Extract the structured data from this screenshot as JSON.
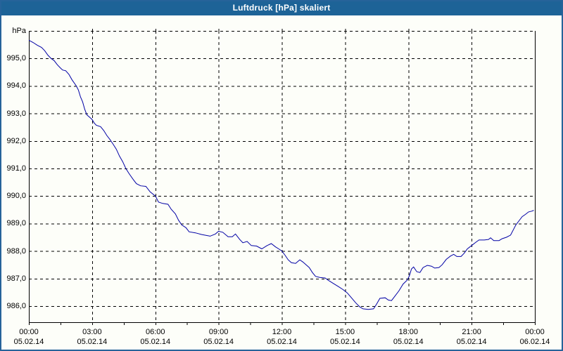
{
  "titlebar": {
    "title": "Luftdruck [hPa] skaliert"
  },
  "colors": {
    "titlebar_bg": "#1D6397",
    "titlebar_fg": "#FFFFFF",
    "window_border": "#26639A",
    "window_bg": "#FDFEF9",
    "grid": "#000000",
    "frame": "#000000",
    "series_line": "#0000A5",
    "label_text": "#000000"
  },
  "chart_data": {
    "type": "line",
    "title": "Luftdruck [hPa] skaliert",
    "ylabel": "hPa",
    "ylim": [
      985.4,
      996.0
    ],
    "xlim_hours": [
      0,
      24
    ],
    "grid": "dashed",
    "minor_tick_step_hours": 1.5,
    "y_ticks": [
      {
        "value": 996.0,
        "label": "hPa"
      },
      {
        "value": 995.0,
        "label": "995,0"
      },
      {
        "value": 994.0,
        "label": "994,0"
      },
      {
        "value": 993.0,
        "label": "993,0"
      },
      {
        "value": 992.0,
        "label": "992,0"
      },
      {
        "value": 991.0,
        "label": "991,0"
      },
      {
        "value": 990.0,
        "label": "990,0"
      },
      {
        "value": 989.0,
        "label": "989,0"
      },
      {
        "value": 988.0,
        "label": "988,0"
      },
      {
        "value": 987.0,
        "label": "987,0"
      },
      {
        "value": 986.0,
        "label": "986,0"
      }
    ],
    "x_ticks": [
      {
        "hour": 0,
        "time": "00:00",
        "date": "05.02.14"
      },
      {
        "hour": 3,
        "time": "03:00",
        "date": "05.02.14"
      },
      {
        "hour": 6,
        "time": "06:00",
        "date": "05.02.14"
      },
      {
        "hour": 9,
        "time": "09:00",
        "date": "05.02.14"
      },
      {
        "hour": 12,
        "time": "12:00",
        "date": "05.02.14"
      },
      {
        "hour": 15,
        "time": "15:00",
        "date": "05.02.14"
      },
      {
        "hour": 18,
        "time": "18:00",
        "date": "05.02.14"
      },
      {
        "hour": 21,
        "time": "21:00",
        "date": "05.02.14"
      },
      {
        "hour": 24,
        "time": "00:00",
        "date": "06.02.14"
      }
    ],
    "series": [
      {
        "name": "Luftdruck",
        "unit": "hPa",
        "points": [
          [
            0.0,
            995.66
          ],
          [
            0.2,
            995.58
          ],
          [
            0.4,
            995.48
          ],
          [
            0.6,
            995.4
          ],
          [
            0.75,
            995.28
          ],
          [
            0.9,
            995.12
          ],
          [
            1.05,
            995.0
          ],
          [
            1.2,
            994.92
          ],
          [
            1.35,
            994.77
          ],
          [
            1.5,
            994.65
          ],
          [
            1.6,
            994.58
          ],
          [
            1.75,
            994.55
          ],
          [
            1.9,
            994.42
          ],
          [
            2.05,
            994.22
          ],
          [
            2.25,
            994.0
          ],
          [
            2.35,
            993.85
          ],
          [
            2.45,
            993.6
          ],
          [
            2.55,
            993.42
          ],
          [
            2.65,
            993.15
          ],
          [
            2.75,
            992.95
          ],
          [
            2.9,
            992.85
          ],
          [
            3.0,
            992.78
          ],
          [
            3.1,
            992.65
          ],
          [
            3.2,
            992.57
          ],
          [
            3.4,
            992.52
          ],
          [
            3.55,
            992.38
          ],
          [
            3.7,
            992.2
          ],
          [
            3.85,
            992.05
          ],
          [
            4.0,
            991.88
          ],
          [
            4.15,
            991.7
          ],
          [
            4.3,
            991.45
          ],
          [
            4.45,
            991.25
          ],
          [
            4.6,
            991.0
          ],
          [
            4.75,
            990.82
          ],
          [
            4.95,
            990.6
          ],
          [
            5.1,
            990.45
          ],
          [
            5.3,
            990.37
          ],
          [
            5.55,
            990.35
          ],
          [
            5.75,
            990.15
          ],
          [
            6.0,
            990.0
          ],
          [
            6.15,
            989.78
          ],
          [
            6.35,
            989.73
          ],
          [
            6.6,
            989.7
          ],
          [
            6.75,
            989.52
          ],
          [
            6.95,
            989.35
          ],
          [
            7.1,
            989.12
          ],
          [
            7.25,
            988.95
          ],
          [
            7.45,
            988.85
          ],
          [
            7.6,
            988.7
          ],
          [
            7.9,
            988.66
          ],
          [
            8.2,
            988.6
          ],
          [
            8.6,
            988.54
          ],
          [
            8.85,
            988.62
          ],
          [
            9.0,
            988.72
          ],
          [
            9.2,
            988.68
          ],
          [
            9.45,
            988.52
          ],
          [
            9.65,
            988.52
          ],
          [
            9.8,
            988.62
          ],
          [
            10.0,
            988.42
          ],
          [
            10.15,
            988.3
          ],
          [
            10.35,
            988.35
          ],
          [
            10.55,
            988.2
          ],
          [
            10.8,
            988.18
          ],
          [
            11.05,
            988.08
          ],
          [
            11.3,
            988.2
          ],
          [
            11.5,
            988.27
          ],
          [
            11.7,
            988.15
          ],
          [
            11.85,
            988.08
          ],
          [
            12.0,
            988.0
          ],
          [
            12.15,
            987.85
          ],
          [
            12.3,
            987.68
          ],
          [
            12.45,
            987.58
          ],
          [
            12.65,
            987.55
          ],
          [
            12.85,
            987.68
          ],
          [
            13.0,
            987.6
          ],
          [
            13.15,
            987.5
          ],
          [
            13.3,
            987.4
          ],
          [
            13.45,
            987.22
          ],
          [
            13.6,
            987.08
          ],
          [
            13.8,
            987.04
          ],
          [
            14.05,
            987.02
          ],
          [
            14.2,
            986.94
          ],
          [
            14.45,
            986.82
          ],
          [
            14.7,
            986.7
          ],
          [
            14.9,
            986.6
          ],
          [
            15.1,
            986.48
          ],
          [
            15.3,
            986.3
          ],
          [
            15.5,
            986.12
          ],
          [
            15.7,
            985.97
          ],
          [
            15.85,
            985.9
          ],
          [
            16.1,
            985.88
          ],
          [
            16.35,
            985.9
          ],
          [
            16.5,
            986.08
          ],
          [
            16.65,
            986.28
          ],
          [
            16.9,
            986.3
          ],
          [
            17.05,
            986.22
          ],
          [
            17.2,
            986.2
          ],
          [
            17.35,
            986.35
          ],
          [
            17.55,
            986.55
          ],
          [
            17.75,
            986.8
          ],
          [
            17.95,
            986.95
          ],
          [
            18.05,
            987.1
          ],
          [
            18.15,
            987.35
          ],
          [
            18.25,
            987.42
          ],
          [
            18.4,
            987.25
          ],
          [
            18.55,
            987.22
          ],
          [
            18.7,
            987.4
          ],
          [
            18.9,
            987.48
          ],
          [
            19.1,
            987.45
          ],
          [
            19.25,
            987.38
          ],
          [
            19.45,
            987.4
          ],
          [
            19.6,
            987.5
          ],
          [
            19.8,
            987.7
          ],
          [
            20.0,
            987.82
          ],
          [
            20.15,
            987.88
          ],
          [
            20.3,
            987.8
          ],
          [
            20.5,
            987.8
          ],
          [
            20.65,
            987.92
          ],
          [
            20.8,
            988.08
          ],
          [
            21.0,
            988.2
          ],
          [
            21.2,
            988.32
          ],
          [
            21.35,
            988.4
          ],
          [
            21.6,
            988.4
          ],
          [
            21.8,
            988.42
          ],
          [
            21.9,
            988.48
          ],
          [
            22.05,
            988.38
          ],
          [
            22.3,
            988.38
          ],
          [
            22.45,
            988.45
          ],
          [
            22.65,
            988.5
          ],
          [
            22.85,
            988.58
          ],
          [
            23.0,
            988.8
          ],
          [
            23.1,
            988.95
          ],
          [
            23.25,
            989.1
          ],
          [
            23.4,
            989.25
          ],
          [
            23.55,
            989.33
          ],
          [
            23.7,
            989.42
          ],
          [
            23.85,
            989.45
          ],
          [
            23.95,
            989.48
          ]
        ]
      }
    ]
  }
}
